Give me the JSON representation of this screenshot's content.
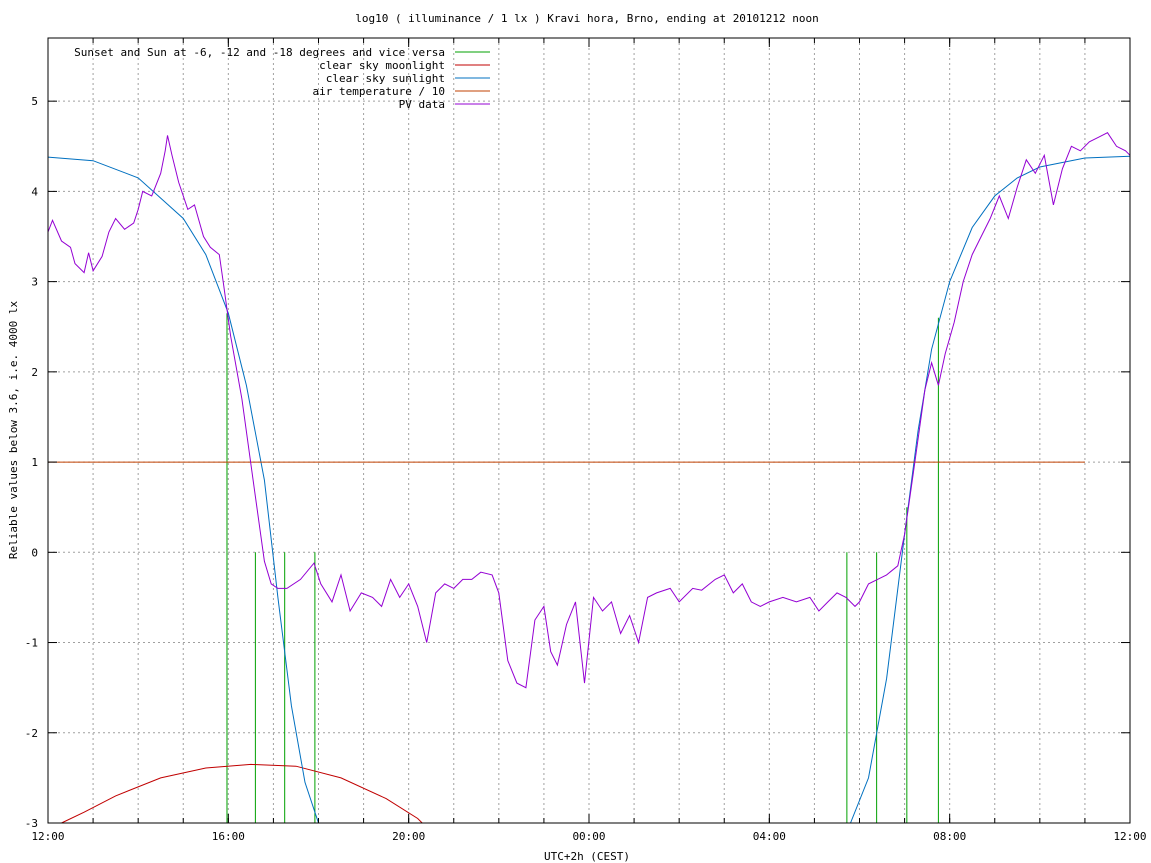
{
  "chart_data": {
    "type": "line",
    "title": "log10 ( illuminance / 1 lx ) Kravi hora, Brno, ending at 20101212 noon",
    "xlabel": "UTC+2h (CEST)",
    "ylabel": "Reliable values below 3.6, i.e. 4000 lx",
    "xlim": [
      12,
      36
    ],
    "ylim": [
      -3,
      5.7
    ],
    "x_ticks": [
      {
        "value": 12,
        "label": "12:00"
      },
      {
        "value": 16,
        "label": "16:00"
      },
      {
        "value": 20,
        "label": "20:00"
      },
      {
        "value": 24,
        "label": "00:00"
      },
      {
        "value": 28,
        "label": "04:00"
      },
      {
        "value": 32,
        "label": "08:00"
      },
      {
        "value": 36,
        "label": "12:00"
      }
    ],
    "y_ticks": [
      {
        "value": -3,
        "label": "-3"
      },
      {
        "value": -2,
        "label": "-2"
      },
      {
        "value": -1,
        "label": "-1"
      },
      {
        "value": 0,
        "label": "0"
      },
      {
        "value": 1,
        "label": "1"
      },
      {
        "value": 2,
        "label": "2"
      },
      {
        "value": 3,
        "label": "3"
      },
      {
        "value": 4,
        "label": "4"
      },
      {
        "value": 5,
        "label": "5"
      }
    ],
    "grid": true,
    "legend_position": "top-left",
    "series": [
      {
        "name": "Sunset and Sun at -6, -12 and -18 degrees and vice versa",
        "color": "#00a000",
        "kind": "impulses",
        "points": [
          [
            15.97,
            2.65
          ],
          [
            16.6,
            0.0
          ],
          [
            17.25,
            0.0
          ],
          [
            17.92,
            0.0
          ],
          [
            29.72,
            0.0
          ],
          [
            30.38,
            0.0
          ],
          [
            31.05,
            0.5
          ],
          [
            31.75,
            2.6
          ]
        ]
      },
      {
        "name": "clear sky moonlight",
        "color": "#c00000",
        "kind": "line",
        "points": [
          [
            12.3,
            -3.0
          ],
          [
            12.8,
            -2.88
          ],
          [
            13.5,
            -2.7
          ],
          [
            14.5,
            -2.5
          ],
          [
            15.5,
            -2.39
          ],
          [
            16.5,
            -2.35
          ],
          [
            17.5,
            -2.37
          ],
          [
            18.5,
            -2.5
          ],
          [
            19.5,
            -2.73
          ],
          [
            20.2,
            -2.95
          ],
          [
            20.3,
            -3.0
          ]
        ]
      },
      {
        "name": "clear sky sunlight",
        "color": "#0070c0",
        "kind": "line",
        "points": [
          [
            12.0,
            4.38
          ],
          [
            13.0,
            4.34
          ],
          [
            14.0,
            4.15
          ],
          [
            15.0,
            3.7
          ],
          [
            15.5,
            3.3
          ],
          [
            16.0,
            2.65
          ],
          [
            16.4,
            1.85
          ],
          [
            16.8,
            0.8
          ],
          [
            17.1,
            -0.5
          ],
          [
            17.4,
            -1.7
          ],
          [
            17.7,
            -2.55
          ],
          [
            18.0,
            -3.0
          ],
          [
            29.8,
            -3.0
          ],
          [
            30.2,
            -2.5
          ],
          [
            30.6,
            -1.4
          ],
          [
            31.0,
            0.2
          ],
          [
            31.3,
            1.35
          ],
          [
            31.6,
            2.25
          ],
          [
            32.0,
            3.0
          ],
          [
            32.5,
            3.6
          ],
          [
            33.0,
            3.95
          ],
          [
            33.5,
            4.15
          ],
          [
            34.0,
            4.27
          ],
          [
            35.0,
            4.37
          ],
          [
            36.0,
            4.39
          ]
        ]
      },
      {
        "name": "air temperature / 10",
        "color": "#c04000",
        "kind": "line",
        "points": [
          [
            12.0,
            1.0
          ],
          [
            35.0,
            1.0
          ]
        ]
      },
      {
        "name": "PV data",
        "color": "#9400d3",
        "kind": "line",
        "points": [
          [
            12.0,
            3.55
          ],
          [
            12.1,
            3.68
          ],
          [
            12.3,
            3.45
          ],
          [
            12.5,
            3.38
          ],
          [
            12.6,
            3.2
          ],
          [
            12.8,
            3.1
          ],
          [
            12.9,
            3.32
          ],
          [
            13.0,
            3.12
          ],
          [
            13.2,
            3.28
          ],
          [
            13.35,
            3.55
          ],
          [
            13.5,
            3.7
          ],
          [
            13.7,
            3.58
          ],
          [
            13.9,
            3.65
          ],
          [
            14.0,
            3.8
          ],
          [
            14.1,
            4.0
          ],
          [
            14.3,
            3.95
          ],
          [
            14.5,
            4.2
          ],
          [
            14.6,
            4.45
          ],
          [
            14.65,
            4.62
          ],
          [
            14.75,
            4.4
          ],
          [
            14.9,
            4.1
          ],
          [
            15.1,
            3.8
          ],
          [
            15.25,
            3.85
          ],
          [
            15.45,
            3.5
          ],
          [
            15.6,
            3.38
          ],
          [
            15.8,
            3.3
          ],
          [
            15.9,
            2.95
          ],
          [
            16.05,
            2.4
          ],
          [
            16.3,
            1.7
          ],
          [
            16.55,
            0.8
          ],
          [
            16.8,
            -0.1
          ],
          [
            16.95,
            -0.35
          ],
          [
            17.1,
            -0.4
          ],
          [
            17.3,
            -0.4
          ],
          [
            17.6,
            -0.3
          ],
          [
            17.9,
            -0.12
          ],
          [
            18.05,
            -0.35
          ],
          [
            18.3,
            -0.55
          ],
          [
            18.5,
            -0.25
          ],
          [
            18.7,
            -0.65
          ],
          [
            18.95,
            -0.45
          ],
          [
            19.2,
            -0.5
          ],
          [
            19.4,
            -0.6
          ],
          [
            19.6,
            -0.3
          ],
          [
            19.8,
            -0.5
          ],
          [
            20.0,
            -0.35
          ],
          [
            20.2,
            -0.6
          ],
          [
            20.4,
            -1.0
          ],
          [
            20.6,
            -0.45
          ],
          [
            20.8,
            -0.35
          ],
          [
            21.0,
            -0.4
          ],
          [
            21.2,
            -0.3
          ],
          [
            21.4,
            -0.3
          ],
          [
            21.6,
            -0.22
          ],
          [
            21.85,
            -0.25
          ],
          [
            22.0,
            -0.45
          ],
          [
            22.2,
            -1.2
          ],
          [
            22.4,
            -1.45
          ],
          [
            22.6,
            -1.5
          ],
          [
            22.8,
            -0.75
          ],
          [
            23.0,
            -0.6
          ],
          [
            23.15,
            -1.1
          ],
          [
            23.3,
            -1.25
          ],
          [
            23.5,
            -0.8
          ],
          [
            23.7,
            -0.55
          ],
          [
            23.9,
            -1.45
          ],
          [
            24.1,
            -0.5
          ],
          [
            24.3,
            -0.65
          ],
          [
            24.5,
            -0.55
          ],
          [
            24.7,
            -0.9
          ],
          [
            24.9,
            -0.7
          ],
          [
            25.1,
            -1.0
          ],
          [
            25.3,
            -0.5
          ],
          [
            25.5,
            -0.45
          ],
          [
            25.8,
            -0.4
          ],
          [
            26.0,
            -0.55
          ],
          [
            26.3,
            -0.4
          ],
          [
            26.5,
            -0.42
          ],
          [
            26.8,
            -0.3
          ],
          [
            27.0,
            -0.25
          ],
          [
            27.2,
            -0.45
          ],
          [
            27.4,
            -0.35
          ],
          [
            27.6,
            -0.55
          ],
          [
            27.8,
            -0.6
          ],
          [
            28.0,
            -0.55
          ],
          [
            28.3,
            -0.5
          ],
          [
            28.6,
            -0.55
          ],
          [
            28.9,
            -0.5
          ],
          [
            29.1,
            -0.65
          ],
          [
            29.3,
            -0.55
          ],
          [
            29.5,
            -0.45
          ],
          [
            29.7,
            -0.5
          ],
          [
            29.9,
            -0.6
          ],
          [
            30.0,
            -0.55
          ],
          [
            30.2,
            -0.35
          ],
          [
            30.4,
            -0.3
          ],
          [
            30.6,
            -0.25
          ],
          [
            30.85,
            -0.15
          ],
          [
            31.0,
            0.2
          ],
          [
            31.2,
            0.9
          ],
          [
            31.45,
            1.8
          ],
          [
            31.6,
            2.1
          ],
          [
            31.75,
            1.85
          ],
          [
            31.9,
            2.2
          ],
          [
            32.1,
            2.55
          ],
          [
            32.3,
            3.0
          ],
          [
            32.5,
            3.3
          ],
          [
            32.7,
            3.5
          ],
          [
            32.9,
            3.7
          ],
          [
            33.1,
            3.95
          ],
          [
            33.3,
            3.7
          ],
          [
            33.5,
            4.05
          ],
          [
            33.7,
            4.35
          ],
          [
            33.9,
            4.2
          ],
          [
            34.1,
            4.4
          ],
          [
            34.3,
            3.85
          ],
          [
            34.5,
            4.25
          ],
          [
            34.7,
            4.5
          ],
          [
            34.9,
            4.45
          ],
          [
            35.1,
            4.55
          ],
          [
            35.3,
            4.6
          ],
          [
            35.5,
            4.65
          ],
          [
            35.7,
            4.5
          ],
          [
            35.9,
            4.45
          ],
          [
            36.0,
            4.4
          ]
        ]
      }
    ]
  }
}
